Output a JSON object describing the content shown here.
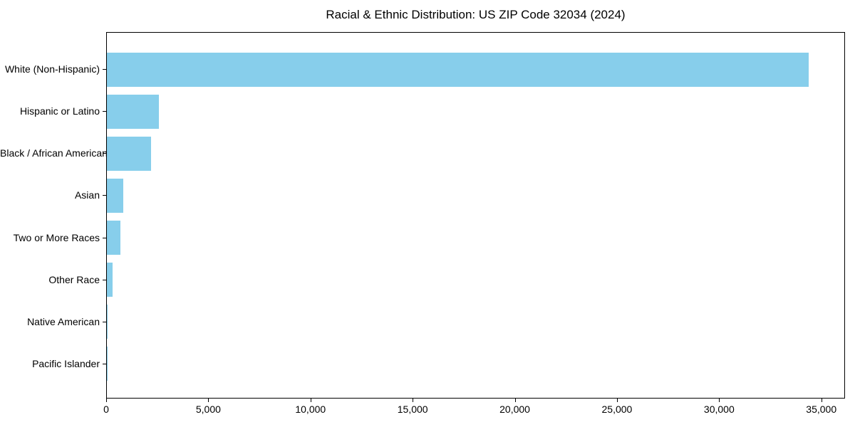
{
  "title": "Racial & Ethnic Distribution: US ZIP Code 32034 (2024)",
  "colors": {
    "bar": "#87CEEB",
    "spine": "#000000",
    "background": "#ffffff",
    "text": "#000000"
  },
  "chart_data": {
    "type": "bar",
    "orientation": "horizontal",
    "title": "Racial & Ethnic Distribution: US ZIP Code 32034 (2024)",
    "xlabel": "",
    "ylabel": "",
    "categories": [
      "White (Non-Hispanic)",
      "Hispanic or Latino",
      "Black / African American",
      "Asian",
      "Two or More Races",
      "Other Race",
      "Native American",
      "Pacific Islander"
    ],
    "values": [
      34400,
      2550,
      2180,
      790,
      670,
      290,
      30,
      10
    ],
    "xlim": [
      0,
      36160
    ],
    "x_ticks": [
      0,
      5000,
      10000,
      15000,
      20000,
      25000,
      30000,
      35000
    ],
    "x_tick_labels": [
      "0",
      "5,000",
      "10,000",
      "15,000",
      "20,000",
      "25,000",
      "30,000",
      "35,000"
    ],
    "bar_color": "#87CEEB",
    "grid": false,
    "legend": null
  }
}
